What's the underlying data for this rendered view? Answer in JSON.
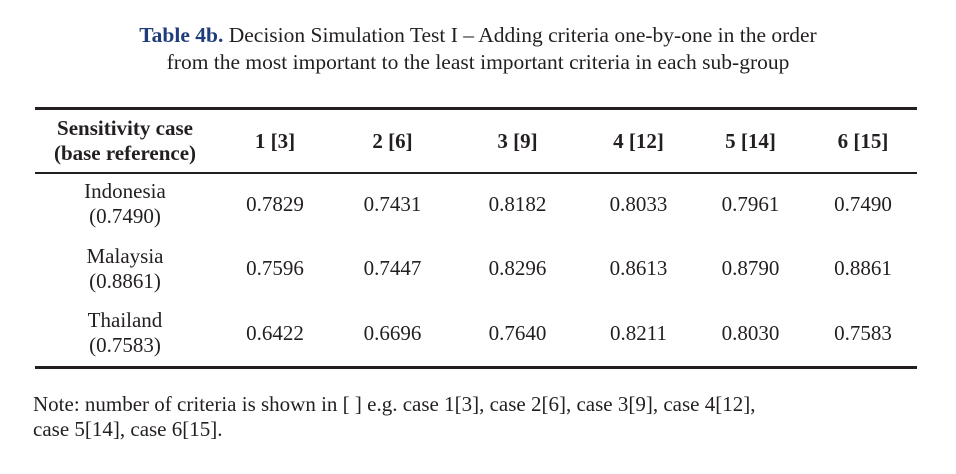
{
  "caption": {
    "label": "Table 4b.",
    "line1": "Decision Simulation Test I – Adding criteria one-by-one in the order",
    "line2": "from the most important to the least important criteria in each sub-group"
  },
  "table": {
    "header": {
      "first_line1": "Sensitivity case",
      "first_line2": "(base reference)",
      "cases": [
        "1 [3]",
        "2 [6]",
        "3 [9]",
        "4 [12]",
        "5 [14]",
        "6 [15]"
      ]
    },
    "rows": [
      {
        "country": "Indonesia",
        "base": "(0.7490)",
        "values": [
          "0.7829",
          "0.7431",
          "0.8182",
          "0.8033",
          "0.7961",
          "0.7490"
        ]
      },
      {
        "country": "Malaysia",
        "base": "(0.8861)",
        "values": [
          "0.7596",
          "0.7447",
          "0.8296",
          "0.8613",
          "0.8790",
          "0.8861"
        ]
      },
      {
        "country": "Thailand",
        "base": "(0.7583)",
        "values": [
          "0.6422",
          "0.6696",
          "0.7640",
          "0.8211",
          "0.8030",
          "0.7583"
        ]
      }
    ]
  },
  "note": {
    "line1": "Note: number of criteria is shown in [ ] e.g. case 1[3], case 2[6], case 3[9], case 4[12],",
    "line2": "case 5[14], case 6[15]."
  }
}
